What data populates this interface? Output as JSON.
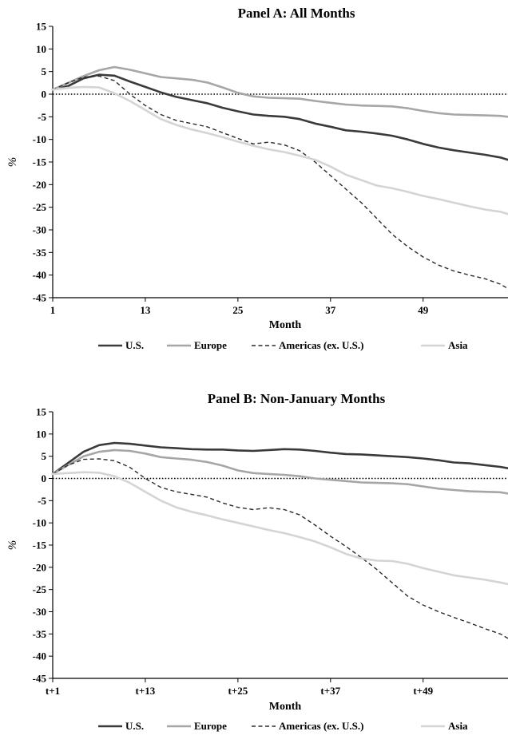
{
  "chart_data": [
    {
      "type": "line",
      "title": "Panel A: All Months",
      "xlabel": "Month",
      "ylabel": "%",
      "xlim": [
        1,
        60
      ],
      "ylim": [
        -45,
        15
      ],
      "yticks": [
        15,
        10,
        5,
        0,
        -5,
        -10,
        -15,
        -20,
        -25,
        -30,
        -35,
        -40,
        -45
      ],
      "xtick_values": [
        1,
        13,
        25,
        37,
        49
      ],
      "xtick_labels": [
        "1",
        "13",
        "25",
        "37",
        "49"
      ],
      "zero_line": "dotted",
      "grid": false,
      "legend_position": "bottom",
      "series": [
        {
          "name": "U.S.",
          "color": "#3a3a3a",
          "dash": "solid",
          "x": [
            1,
            3,
            5,
            7,
            9,
            11,
            13,
            15,
            17,
            19,
            21,
            23,
            25,
            27,
            29,
            31,
            33,
            35,
            37,
            39,
            41,
            43,
            45,
            47,
            49,
            51,
            53,
            55,
            57,
            59,
            60
          ],
          "y": [
            1,
            1.8,
            3.5,
            4.3,
            4.1,
            2.8,
            1.6,
            0.4,
            -0.6,
            -1.3,
            -2,
            -3,
            -3.8,
            -4.5,
            -4.8,
            -5,
            -5.5,
            -6.5,
            -7.2,
            -8,
            -8.3,
            -8.7,
            -9.2,
            -10,
            -11,
            -11.8,
            -12.4,
            -12.9,
            -13.4,
            -14,
            -14.5
          ]
        },
        {
          "name": "Europe",
          "color": "#a6a6a6",
          "dash": "solid",
          "x": [
            1,
            3,
            5,
            7,
            9,
            11,
            13,
            15,
            17,
            19,
            21,
            23,
            25,
            27,
            29,
            31,
            33,
            35,
            37,
            39,
            41,
            43,
            45,
            47,
            49,
            51,
            53,
            55,
            57,
            59,
            60
          ],
          "y": [
            1,
            2.5,
            4,
            5.3,
            6,
            5.4,
            4.6,
            3.8,
            3.5,
            3.2,
            2.6,
            1.5,
            0.3,
            -0.5,
            -0.8,
            -0.9,
            -1,
            -1.5,
            -1.9,
            -2.3,
            -2.5,
            -2.6,
            -2.7,
            -3.1,
            -3.7,
            -4.2,
            -4.5,
            -4.6,
            -4.7,
            -4.8,
            -5
          ]
        },
        {
          "name": "Americas (ex. U.S.)",
          "color": "#2a2a2a",
          "dash": "dashed",
          "x": [
            1,
            3,
            5,
            7,
            9,
            11,
            13,
            15,
            17,
            19,
            21,
            23,
            25,
            27,
            29,
            31,
            33,
            35,
            37,
            39,
            41,
            43,
            45,
            47,
            49,
            51,
            53,
            55,
            57,
            59,
            60
          ],
          "y": [
            1,
            2.5,
            3.8,
            4,
            3,
            0,
            -2.5,
            -4.5,
            -5.8,
            -6.5,
            -7.2,
            -8.5,
            -9.8,
            -11,
            -10.6,
            -11.2,
            -12.5,
            -15,
            -18,
            -21,
            -24,
            -27.5,
            -31,
            -33.7,
            -36,
            -37.8,
            -39.1,
            -40,
            -40.8,
            -42,
            -43
          ]
        },
        {
          "name": "Asia",
          "color": "#d4d4d4",
          "dash": "solid",
          "x": [
            1,
            3,
            5,
            7,
            9,
            11,
            13,
            15,
            17,
            19,
            21,
            23,
            25,
            27,
            29,
            31,
            33,
            35,
            37,
            39,
            41,
            43,
            45,
            47,
            49,
            51,
            53,
            55,
            57,
            59,
            60
          ],
          "y": [
            1,
            1.4,
            1.6,
            1.5,
            0.2,
            -1.5,
            -3.5,
            -5.5,
            -6.8,
            -7.8,
            -8.6,
            -9.5,
            -10.5,
            -11.4,
            -12.2,
            -12.8,
            -13.6,
            -14.5,
            -16,
            -17.8,
            -19,
            -20.2,
            -20.8,
            -21.6,
            -22.5,
            -23.2,
            -24,
            -24.8,
            -25.5,
            -26,
            -26.5
          ]
        }
      ]
    },
    {
      "type": "line",
      "title": "Panel B: Non-January Months",
      "xlabel": "Month",
      "ylabel": "%",
      "xlim": [
        1,
        60
      ],
      "ylim": [
        -45,
        15
      ],
      "yticks": [
        15,
        10,
        5,
        0,
        -5,
        -10,
        -15,
        -20,
        -25,
        -30,
        -35,
        -40,
        -45
      ],
      "xtick_values": [
        1,
        13,
        25,
        37,
        49
      ],
      "xtick_labels": [
        "t+1",
        "t+13",
        "t+25",
        "t+37",
        "t+49"
      ],
      "zero_line": "dotted",
      "grid": false,
      "legend_position": "bottom",
      "series": [
        {
          "name": "U.S.",
          "color": "#3a3a3a",
          "dash": "solid",
          "x": [
            1,
            3,
            5,
            7,
            9,
            11,
            13,
            15,
            17,
            19,
            21,
            23,
            25,
            27,
            29,
            31,
            33,
            35,
            37,
            39,
            41,
            43,
            45,
            47,
            49,
            51,
            53,
            55,
            57,
            59,
            60
          ],
          "y": [
            1,
            3.5,
            6,
            7.5,
            8,
            7.8,
            7.4,
            7,
            6.8,
            6.6,
            6.5,
            6.5,
            6.3,
            6.2,
            6.4,
            6.6,
            6.5,
            6.2,
            5.8,
            5.5,
            5.4,
            5.2,
            5.0,
            4.8,
            4.5,
            4.1,
            3.6,
            3.4,
            3,
            2.6,
            2.3
          ]
        },
        {
          "name": "Europe",
          "color": "#a6a6a6",
          "dash": "solid",
          "x": [
            1,
            3,
            5,
            7,
            9,
            11,
            13,
            15,
            17,
            19,
            21,
            23,
            25,
            27,
            29,
            31,
            33,
            35,
            37,
            39,
            41,
            43,
            45,
            47,
            49,
            51,
            53,
            55,
            57,
            59,
            60
          ],
          "y": [
            1,
            3,
            5,
            6,
            6.4,
            6.2,
            5.6,
            4.8,
            4.5,
            4.2,
            3.7,
            2.9,
            1.8,
            1.2,
            1.0,
            0.8,
            0.5,
            0,
            -0.3,
            -0.6,
            -0.9,
            -1,
            -1.1,
            -1.3,
            -1.8,
            -2.3,
            -2.6,
            -2.9,
            -3,
            -3.1,
            -3.4
          ]
        },
        {
          "name": "Americas (ex. U.S.)",
          "color": "#2a2a2a",
          "dash": "dashed",
          "x": [
            1,
            3,
            5,
            7,
            9,
            11,
            13,
            15,
            17,
            19,
            21,
            23,
            25,
            27,
            29,
            31,
            33,
            35,
            37,
            39,
            41,
            43,
            45,
            47,
            49,
            51,
            53,
            55,
            57,
            59,
            60
          ],
          "y": [
            1,
            3,
            4.3,
            4.4,
            4,
            2.5,
            0,
            -2,
            -3,
            -3.6,
            -4.2,
            -5.5,
            -6.5,
            -7,
            -6.6,
            -7,
            -8.2,
            -10.5,
            -13,
            -15.3,
            -17.8,
            -20.5,
            -23.5,
            -26.5,
            -28.5,
            -30,
            -31.3,
            -32.5,
            -33.8,
            -35,
            -36
          ]
        },
        {
          "name": "Asia",
          "color": "#d4d4d4",
          "dash": "solid",
          "x": [
            1,
            3,
            5,
            7,
            9,
            11,
            13,
            15,
            17,
            19,
            21,
            23,
            25,
            27,
            29,
            31,
            33,
            35,
            37,
            39,
            41,
            43,
            45,
            47,
            49,
            51,
            53,
            55,
            57,
            59,
            60
          ],
          "y": [
            1,
            1.2,
            1.4,
            1.3,
            0.5,
            -1,
            -3,
            -5,
            -6.5,
            -7.5,
            -8.3,
            -9.2,
            -10,
            -10.8,
            -11.6,
            -12.3,
            -13.2,
            -14.2,
            -15.5,
            -17,
            -18,
            -18.5,
            -18.6,
            -19.2,
            -20.2,
            -21,
            -21.8,
            -22.3,
            -22.8,
            -23.4,
            -23.8
          ]
        }
      ]
    }
  ]
}
